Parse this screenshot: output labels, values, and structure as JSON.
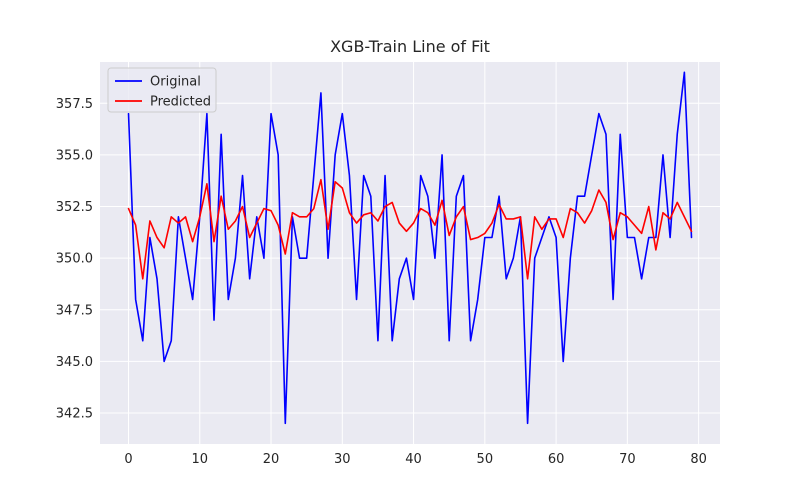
{
  "chart_data": {
    "type": "line",
    "title": "XGB-Train Line of Fit",
    "xlabel": "",
    "ylabel": "",
    "xlim": [
      -4,
      83
    ],
    "ylim": [
      341,
      359.5
    ],
    "xticks": [
      0,
      10,
      20,
      30,
      40,
      50,
      60,
      70,
      80
    ],
    "yticks": [
      342.5,
      345.0,
      347.5,
      350.0,
      352.5,
      355.0,
      357.5
    ],
    "ytick_labels": [
      "342.5",
      "345.0",
      "347.5",
      "350.0",
      "352.5",
      "355.0",
      "357.5"
    ],
    "grid": true,
    "legend_position": "top-left",
    "x": [
      0,
      1,
      2,
      3,
      4,
      5,
      6,
      7,
      8,
      9,
      10,
      11,
      12,
      13,
      14,
      15,
      16,
      17,
      18,
      19,
      20,
      21,
      22,
      23,
      24,
      25,
      26,
      27,
      28,
      29,
      30,
      31,
      32,
      33,
      34,
      35,
      36,
      37,
      38,
      39,
      40,
      41,
      42,
      43,
      44,
      45,
      46,
      47,
      48,
      49,
      50,
      51,
      52,
      53,
      54,
      55,
      56,
      57,
      58,
      59,
      60,
      61,
      62,
      63,
      64,
      65,
      66,
      67,
      68,
      69,
      70,
      71,
      72,
      73,
      74,
      75,
      76,
      77,
      78,
      79
    ],
    "series": [
      {
        "name": "Original",
        "color": "#0000ff",
        "values": [
          357,
          348,
          346,
          351,
          349,
          345,
          346,
          352,
          350,
          348,
          352,
          357,
          347,
          356,
          348,
          350,
          354,
          349,
          352,
          350,
          357,
          355,
          342,
          352,
          350,
          350,
          354,
          358,
          350,
          355,
          357,
          354,
          348,
          354,
          353,
          346,
          354,
          346,
          349,
          350,
          348,
          354,
          353,
          350,
          355,
          346,
          353,
          354,
          346,
          348,
          351,
          351,
          353,
          349,
          350,
          352,
          342,
          350,
          351,
          352,
          351,
          345,
          350,
          353,
          353,
          355,
          357,
          356,
          348,
          356,
          351,
          351,
          349,
          351,
          351,
          355,
          351,
          356,
          359,
          351
        ]
      },
      {
        "name": "Predicted",
        "color": "#ff0000",
        "values": [
          352.4,
          351.6,
          349.0,
          351.8,
          351.0,
          350.5,
          352.0,
          351.7,
          352.0,
          350.8,
          352.0,
          353.6,
          350.8,
          353.0,
          351.4,
          351.8,
          352.5,
          351.0,
          351.7,
          352.4,
          352.3,
          351.6,
          350.2,
          352.2,
          352.0,
          352.0,
          352.4,
          353.8,
          351.4,
          353.7,
          353.4,
          352.2,
          351.7,
          352.1,
          352.2,
          351.8,
          352.5,
          352.7,
          351.7,
          351.3,
          351.7,
          352.4,
          352.2,
          351.6,
          352.8,
          351.1,
          352.0,
          352.5,
          350.9,
          351.0,
          351.2,
          351.7,
          352.6,
          351.9,
          351.9,
          352.0,
          349.0,
          352.0,
          351.4,
          351.9,
          351.9,
          351.0,
          352.4,
          352.2,
          351.7,
          352.3,
          353.3,
          352.7,
          350.9,
          352.2,
          352.0,
          351.6,
          351.2,
          352.5,
          350.4,
          352.2,
          351.9,
          352.7,
          352.0,
          351.3
        ]
      }
    ]
  }
}
